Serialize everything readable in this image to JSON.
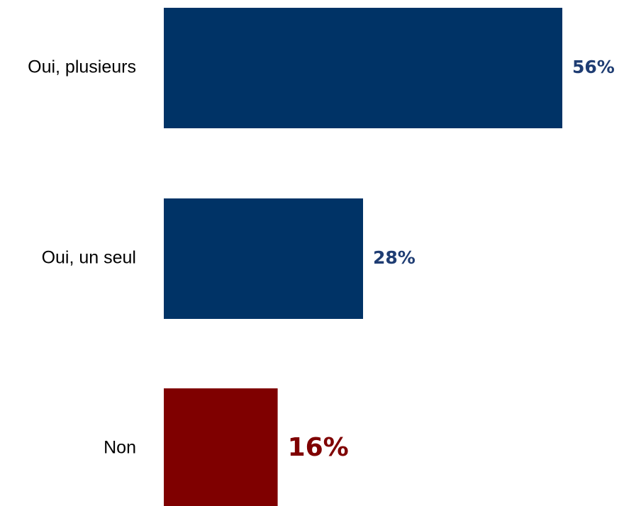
{
  "chart_data": {
    "type": "bar",
    "orientation": "horizontal",
    "categories": [
      "Oui, plusieurs",
      "Oui, un seul",
      "Non"
    ],
    "values": [
      56,
      28,
      16
    ],
    "value_labels": [
      "56%",
      "28%",
      "16%"
    ],
    "bar_colors": [
      "#003366",
      "#003366",
      "#7f0000"
    ],
    "label_colors": [
      "#1f3d73",
      "#1f3d73",
      "#7f0000"
    ],
    "xlim": [
      0,
      56
    ],
    "grid": false,
    "legend": "none",
    "title": "",
    "xlabel": "",
    "ylabel": ""
  }
}
